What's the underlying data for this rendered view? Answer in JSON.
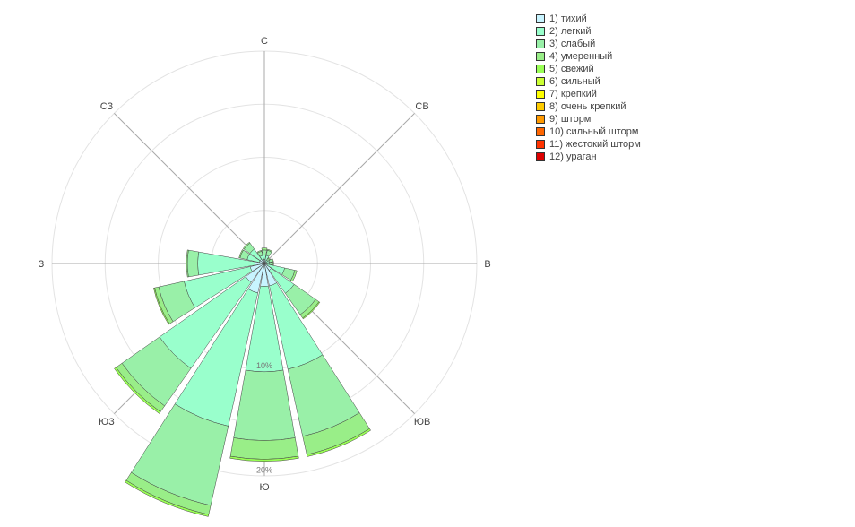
{
  "chart_data": {
    "type": "windrose",
    "directions": [
      "С",
      "СВ",
      "В",
      "ЮВ",
      "Ю",
      "ЮЗ",
      "З",
      "СЗ"
    ],
    "radial_axis": {
      "range": [
        0,
        20.4
      ],
      "ticks": [
        10,
        20
      ],
      "tick_labels": [
        "10%",
        "20%"
      ],
      "grid": true
    },
    "legend": {
      "position": "top-right"
    },
    "series": [
      {
        "name": "1) тихий",
        "color": "#c8f4ff"
      },
      {
        "name": "2) легкий",
        "color": "#99ffcc"
      },
      {
        "name": "3) слабый",
        "color": "#99f0a8"
      },
      {
        "name": "4) умеренный",
        "color": "#99ee88"
      },
      {
        "name": "5) свежий",
        "color": "#99ff55"
      },
      {
        "name": "6) сильный",
        "color": "#ccff33"
      },
      {
        "name": "7) крепкий",
        "color": "#ffff00"
      },
      {
        "name": "8) очень крепкий",
        "color": "#ffcc00"
      },
      {
        "name": "9) шторм",
        "color": "#ff9900"
      },
      {
        "name": "10) сильный шторм",
        "color": "#ff6600"
      },
      {
        "name": "11) жестокий шторм",
        "color": "#ff3300"
      },
      {
        "name": "12) ураган",
        "color": "#dd0000"
      }
    ],
    "sectors": [
      {
        "center_deg": 0,
        "width_deg": 20,
        "cumulative": [
          0.4,
          0.8,
          1.3,
          1.5
        ]
      },
      {
        "center_deg": 22.5,
        "width_deg": 20,
        "cumulative": [
          0.3,
          0.8,
          1.3,
          1.4
        ]
      },
      {
        "center_deg": 45,
        "width_deg": 20,
        "cumulative": [
          0.2,
          0.4,
          0.6,
          0.7
        ]
      },
      {
        "center_deg": 67.5,
        "width_deg": 20,
        "cumulative": [
          0.2,
          0.5,
          0.8,
          0.9
        ]
      },
      {
        "center_deg": 90,
        "width_deg": 20,
        "cumulative": [
          0.2,
          0.5,
          0.8,
          0.9
        ]
      },
      {
        "center_deg": 112.5,
        "width_deg": 20,
        "cumulative": [
          0.3,
          2.0,
          3.0,
          3.2
        ]
      },
      {
        "center_deg": 135,
        "width_deg": 20,
        "cumulative": [
          0.8,
          3.5,
          6.0,
          6.4,
          6.5
        ]
      },
      {
        "center_deg": 157.5,
        "width_deg": 20,
        "cumulative": [
          2.2,
          10.4,
          17.0,
          18.8,
          19.0
        ]
      },
      {
        "center_deg": 180,
        "width_deg": 20,
        "cumulative": [
          2.2,
          10.4,
          17.0,
          18.8,
          19.0
        ]
      },
      {
        "center_deg": 202.5,
        "width_deg": 20,
        "cumulative": [
          2.9,
          16.0,
          23.8,
          24.7,
          24.9
        ]
      },
      {
        "center_deg": 225,
        "width_deg": 20,
        "cumulative": [
          2.2,
          12.3,
          16.7,
          17.4,
          17.6
        ]
      },
      {
        "center_deg": 247.5,
        "width_deg": 20,
        "cumulative": [
          1.4,
          7.9,
          10.4,
          10.8,
          10.9
        ]
      },
      {
        "center_deg": 270,
        "width_deg": 20,
        "cumulative": [
          0.9,
          6.4,
          7.4,
          7.5
        ]
      },
      {
        "center_deg": 292.5,
        "width_deg": 20,
        "cumulative": [
          0.5,
          1.7,
          2.4,
          2.5
        ]
      },
      {
        "center_deg": 315,
        "width_deg": 20,
        "cumulative": [
          0.5,
          1.7,
          2.4,
          2.5
        ]
      },
      {
        "center_deg": 337.5,
        "width_deg": 20,
        "cumulative": [
          0.3,
          0.8,
          1.2,
          1.3
        ]
      }
    ]
  }
}
